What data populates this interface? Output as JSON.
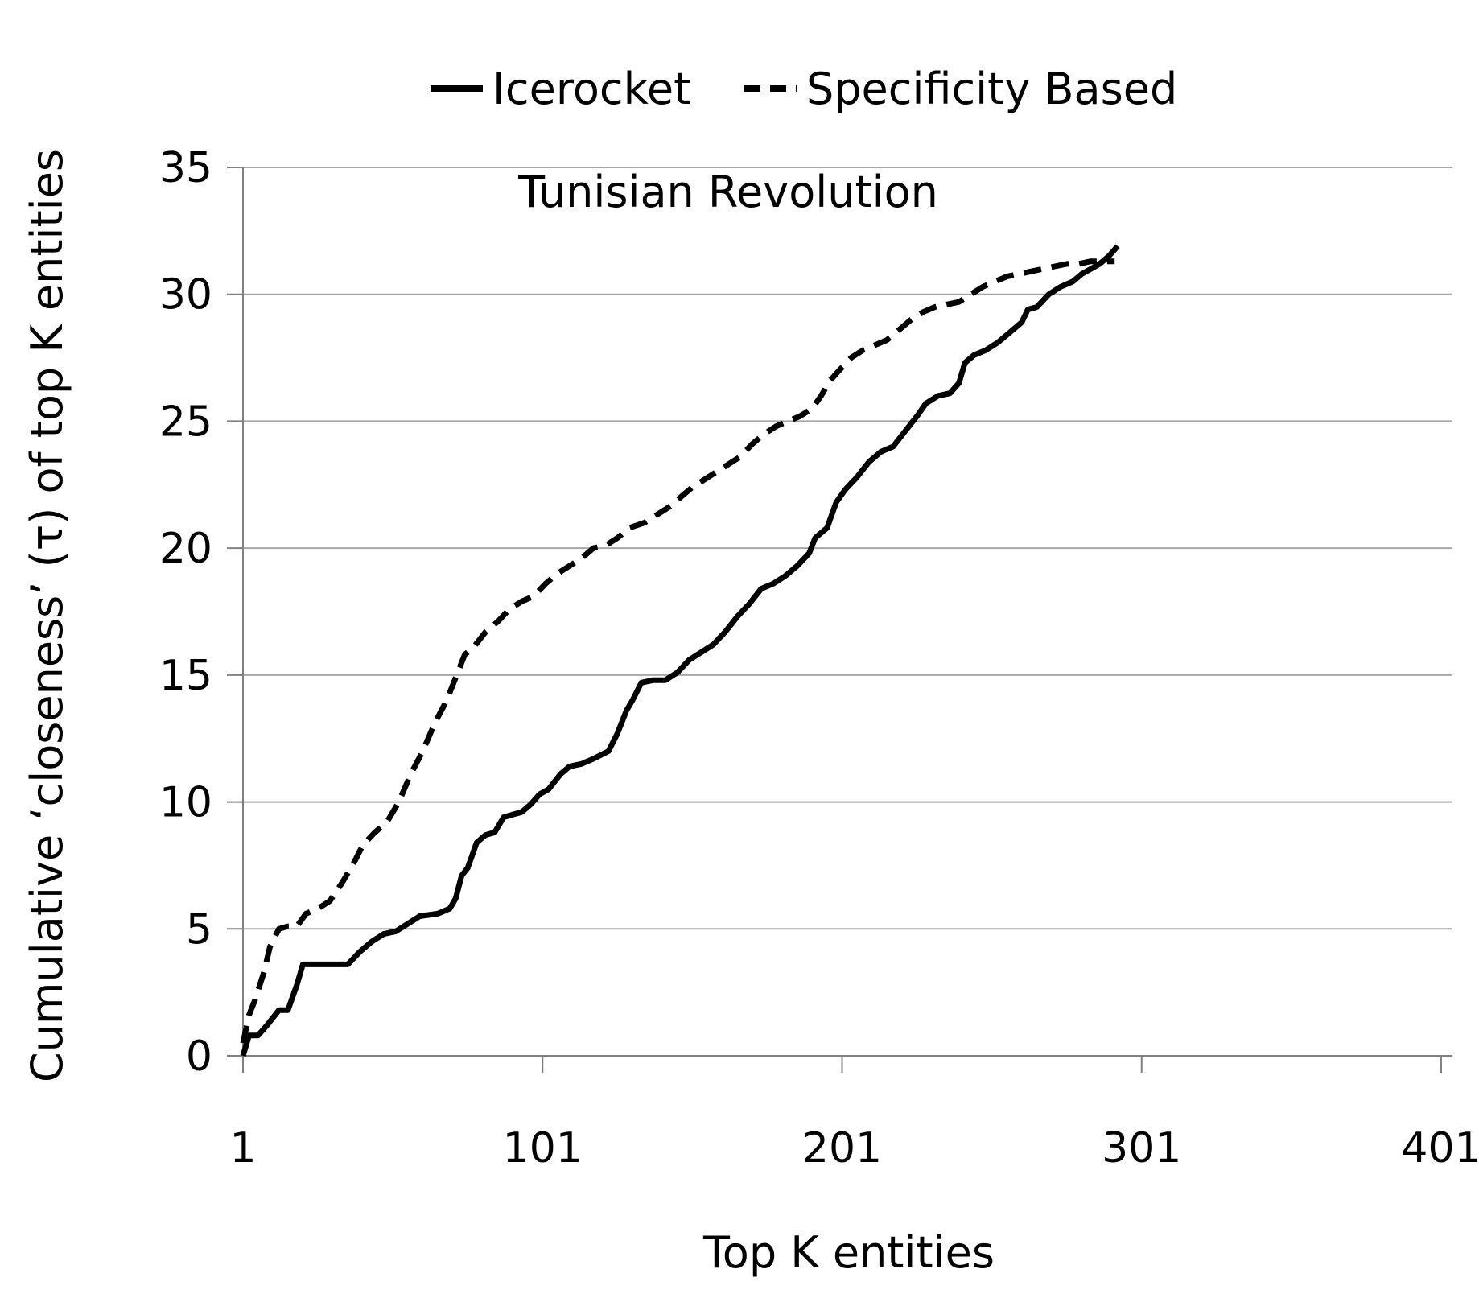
{
  "chart_data": {
    "type": "line",
    "title": "Tunisian Revolution",
    "xlabel": "Top K entities",
    "ylabel": "Cumulative ‘closeness’ (τ) of top K entities",
    "xlim": [
      1,
      401
    ],
    "ylim": [
      0,
      35
    ],
    "x_ticks": [
      "1",
      "101",
      "201",
      "301",
      "401"
    ],
    "y_ticks": [
      "0",
      "5",
      "10",
      "15",
      "20",
      "25",
      "30",
      "35"
    ],
    "grid": "horizontal",
    "legend_position": "top",
    "colors": {
      "series": "#000000",
      "grid": "#a6a6a6",
      "axis": "#808080"
    },
    "series": [
      {
        "name": "Icerocket",
        "style": "solid",
        "points": [
          [
            1,
            0
          ],
          [
            3,
            0.8
          ],
          [
            6,
            0.8
          ],
          [
            9,
            1.2
          ],
          [
            13,
            1.8
          ],
          [
            16,
            1.8
          ],
          [
            19,
            2.8
          ],
          [
            21,
            3.6
          ],
          [
            26,
            3.6
          ],
          [
            31,
            3.6
          ],
          [
            36,
            3.6
          ],
          [
            40,
            4.1
          ],
          [
            44,
            4.5
          ],
          [
            48,
            4.8
          ],
          [
            52,
            4.9
          ],
          [
            56,
            5.2
          ],
          [
            60,
            5.5
          ],
          [
            66,
            5.6
          ],
          [
            70,
            5.8
          ],
          [
            72,
            6.2
          ],
          [
            74,
            7.1
          ],
          [
            76,
            7.4
          ],
          [
            79,
            8.4
          ],
          [
            82,
            8.7
          ],
          [
            85,
            8.8
          ],
          [
            88,
            9.4
          ],
          [
            91,
            9.5
          ],
          [
            94,
            9.6
          ],
          [
            97,
            9.9
          ],
          [
            100,
            10.3
          ],
          [
            103,
            10.5
          ],
          [
            107,
            11.1
          ],
          [
            110,
            11.4
          ],
          [
            114,
            11.5
          ],
          [
            118,
            11.7
          ],
          [
            123,
            12.0
          ],
          [
            126,
            12.7
          ],
          [
            129,
            13.6
          ],
          [
            131,
            14.0
          ],
          [
            134,
            14.7
          ],
          [
            138,
            14.8
          ],
          [
            142,
            14.8
          ],
          [
            146,
            15.1
          ],
          [
            150,
            15.6
          ],
          [
            154,
            15.9
          ],
          [
            158,
            16.2
          ],
          [
            162,
            16.7
          ],
          [
            166,
            17.3
          ],
          [
            170,
            17.8
          ],
          [
            174,
            18.4
          ],
          [
            178,
            18.6
          ],
          [
            182,
            18.9
          ],
          [
            186,
            19.3
          ],
          [
            190,
            19.8
          ],
          [
            192,
            20.4
          ],
          [
            196,
            20.8
          ],
          [
            199,
            21.8
          ],
          [
            202,
            22.3
          ],
          [
            206,
            22.8
          ],
          [
            210,
            23.4
          ],
          [
            214,
            23.8
          ],
          [
            218,
            24.0
          ],
          [
            222,
            24.6
          ],
          [
            226,
            25.2
          ],
          [
            229,
            25.7
          ],
          [
            233,
            26.0
          ],
          [
            237,
            26.1
          ],
          [
            240,
            26.5
          ],
          [
            242,
            27.3
          ],
          [
            245,
            27.6
          ],
          [
            249,
            27.8
          ],
          [
            253,
            28.1
          ],
          [
            257,
            28.5
          ],
          [
            261,
            28.9
          ],
          [
            263,
            29.4
          ],
          [
            266,
            29.5
          ],
          [
            270,
            30.0
          ],
          [
            274,
            30.3
          ],
          [
            278,
            30.5
          ],
          [
            281,
            30.8
          ],
          [
            284,
            31.0
          ],
          [
            287,
            31.2
          ],
          [
            290,
            31.5
          ],
          [
            293,
            31.9
          ]
        ]
      },
      {
        "name": "Specificity Based",
        "style": "dashed",
        "points": [
          [
            1,
            0.5
          ],
          [
            3,
            1.6
          ],
          [
            5,
            2.2
          ],
          [
            8,
            3.3
          ],
          [
            10,
            4.3
          ],
          [
            13,
            5.0
          ],
          [
            16,
            5.1
          ],
          [
            19,
            5.1
          ],
          [
            22,
            5.6
          ],
          [
            26,
            5.8
          ],
          [
            30,
            6.1
          ],
          [
            34,
            6.8
          ],
          [
            38,
            7.6
          ],
          [
            41,
            8.3
          ],
          [
            45,
            8.8
          ],
          [
            49,
            9.2
          ],
          [
            53,
            10.0
          ],
          [
            57,
            11.1
          ],
          [
            61,
            12.0
          ],
          [
            65,
            13.1
          ],
          [
            69,
            14.0
          ],
          [
            72,
            14.9
          ],
          [
            75,
            15.8
          ],
          [
            78,
            16.1
          ],
          [
            82,
            16.7
          ],
          [
            86,
            17.1
          ],
          [
            90,
            17.6
          ],
          [
            94,
            17.9
          ],
          [
            98,
            18.1
          ],
          [
            102,
            18.6
          ],
          [
            106,
            19.0
          ],
          [
            110,
            19.3
          ],
          [
            114,
            19.6
          ],
          [
            118,
            20.0
          ],
          [
            122,
            20.1
          ],
          [
            126,
            20.4
          ],
          [
            130,
            20.8
          ],
          [
            135,
            21.0
          ],
          [
            139,
            21.3
          ],
          [
            143,
            21.6
          ],
          [
            147,
            22.0
          ],
          [
            151,
            22.4
          ],
          [
            155,
            22.7
          ],
          [
            159,
            23.0
          ],
          [
            163,
            23.3
          ],
          [
            167,
            23.6
          ],
          [
            171,
            24.1
          ],
          [
            175,
            24.5
          ],
          [
            179,
            24.8
          ],
          [
            183,
            25.0
          ],
          [
            187,
            25.2
          ],
          [
            191,
            25.5
          ],
          [
            194,
            26.0
          ],
          [
            197,
            26.6
          ],
          [
            200,
            27.0
          ],
          [
            204,
            27.5
          ],
          [
            208,
            27.8
          ],
          [
            212,
            28.0
          ],
          [
            216,
            28.2
          ],
          [
            220,
            28.6
          ],
          [
            224,
            29.0
          ],
          [
            228,
            29.3
          ],
          [
            232,
            29.5
          ],
          [
            236,
            29.6
          ],
          [
            240,
            29.7
          ],
          [
            244,
            30.0
          ],
          [
            248,
            30.3
          ],
          [
            252,
            30.5
          ],
          [
            256,
            30.7
          ],
          [
            260,
            30.8
          ],
          [
            264,
            30.9
          ],
          [
            268,
            31.0
          ],
          [
            272,
            31.1
          ],
          [
            276,
            31.2
          ],
          [
            280,
            31.2
          ],
          [
            284,
            31.3
          ],
          [
            288,
            31.3
          ],
          [
            292,
            31.3
          ]
        ]
      }
    ]
  }
}
